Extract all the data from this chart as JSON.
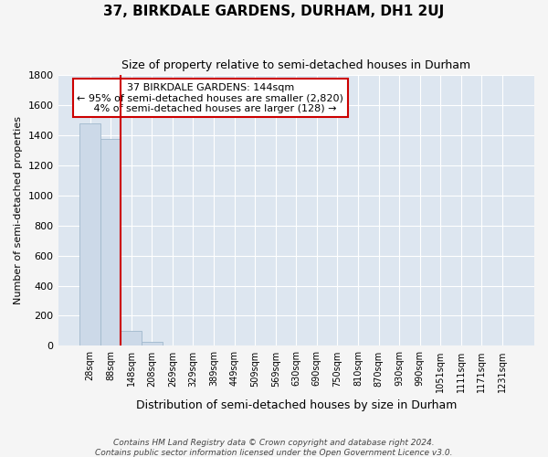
{
  "title": "37, BIRKDALE GARDENS, DURHAM, DH1 2UJ",
  "subtitle": "Size of property relative to semi-detached houses in Durham",
  "xlabel": "Distribution of semi-detached houses by size in Durham",
  "ylabel": "Number of semi-detached properties",
  "footnote1": "Contains HM Land Registry data © Crown copyright and database right 2024.",
  "footnote2": "Contains public sector information licensed under the Open Government Licence v3.0.",
  "property_label": "37 BIRKDALE GARDENS: 144sqm",
  "pct_smaller": 95,
  "count_smaller": 2820,
  "pct_larger": 4,
  "count_larger": 128,
  "bin_labels": [
    "28sqm",
    "88sqm",
    "148sqm",
    "208sqm",
    "269sqm",
    "329sqm",
    "389sqm",
    "449sqm",
    "509sqm",
    "569sqm",
    "630sqm",
    "690sqm",
    "750sqm",
    "810sqm",
    "870sqm",
    "930sqm",
    "990sqm",
    "1051sqm",
    "1111sqm",
    "1171sqm",
    "1231sqm"
  ],
  "bin_values": [
    1480,
    1375,
    100,
    25,
    0,
    0,
    0,
    0,
    0,
    0,
    0,
    0,
    0,
    0,
    0,
    0,
    0,
    0,
    0,
    0,
    0
  ],
  "bar_color": "#ccd9e8",
  "bar_edge_color": "#a0b8cc",
  "vline_color": "#cc0000",
  "bg_color": "#dde6f0",
  "grid_color": "#ffffff",
  "fig_bg_color": "#f5f5f5",
  "annotation_box_color": "#ffffff",
  "annotation_box_edge": "#cc0000",
  "ylim": [
    0,
    1800
  ],
  "yticks": [
    0,
    200,
    400,
    600,
    800,
    1000,
    1200,
    1400,
    1600,
    1800
  ]
}
